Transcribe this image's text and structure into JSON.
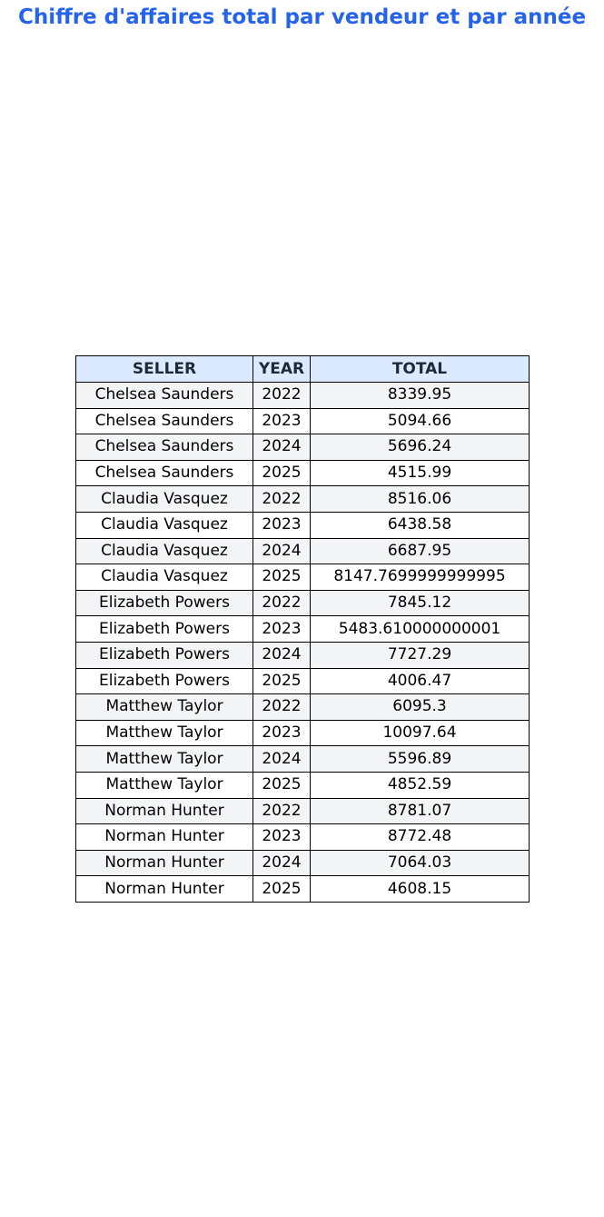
{
  "title": "Chiffre d'affaires total par vendeur et par année",
  "colors": {
    "title": "#2563eb",
    "header_bg": "#dbeafe",
    "row_alt_bg": "#f3f4f6",
    "row_bg": "#ffffff",
    "border": "#000000"
  },
  "chart_data": {
    "type": "table",
    "title": "Chiffre d'affaires total par vendeur et par année",
    "columns": [
      "SELLER",
      "YEAR",
      "TOTAL"
    ],
    "rows": [
      [
        "Chelsea Saunders",
        "2022",
        "8339.95"
      ],
      [
        "Chelsea Saunders",
        "2023",
        "5094.66"
      ],
      [
        "Chelsea Saunders",
        "2024",
        "5696.24"
      ],
      [
        "Chelsea Saunders",
        "2025",
        "4515.99"
      ],
      [
        "Claudia Vasquez",
        "2022",
        "8516.06"
      ],
      [
        "Claudia Vasquez",
        "2023",
        "6438.58"
      ],
      [
        "Claudia Vasquez",
        "2024",
        "6687.95"
      ],
      [
        "Claudia Vasquez",
        "2025",
        "8147.7699999999995"
      ],
      [
        "Elizabeth Powers",
        "2022",
        "7845.12"
      ],
      [
        "Elizabeth Powers",
        "2023",
        "5483.610000000001"
      ],
      [
        "Elizabeth Powers",
        "2024",
        "7727.29"
      ],
      [
        "Elizabeth Powers",
        "2025",
        "4006.47"
      ],
      [
        "Matthew Taylor",
        "2022",
        "6095.3"
      ],
      [
        "Matthew Taylor",
        "2023",
        "10097.64"
      ],
      [
        "Matthew Taylor",
        "2024",
        "5596.89"
      ],
      [
        "Matthew Taylor",
        "2025",
        "4852.59"
      ],
      [
        "Norman Hunter",
        "2022",
        "8781.07"
      ],
      [
        "Norman Hunter",
        "2023",
        "8772.48"
      ],
      [
        "Norman Hunter",
        "2024",
        "7064.03"
      ],
      [
        "Norman Hunter",
        "2025",
        "4608.15"
      ]
    ]
  }
}
